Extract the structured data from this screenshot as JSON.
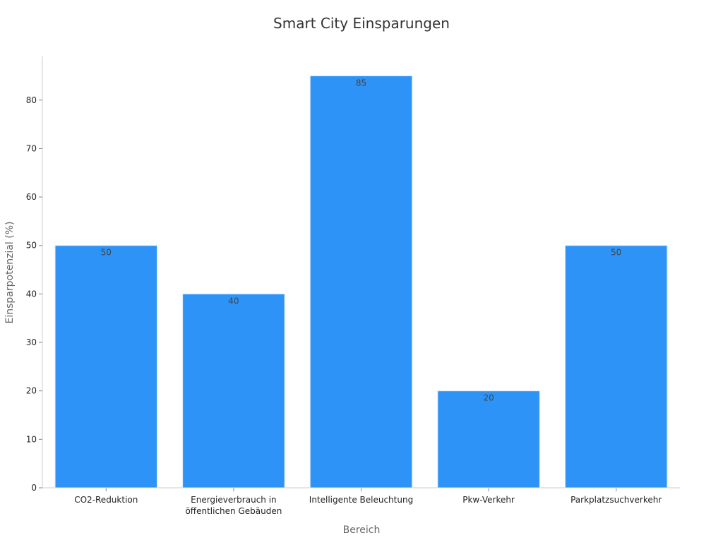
{
  "chart_data": {
    "type": "bar",
    "title": "Smart City Einsparungen",
    "xlabel": "Bereich",
    "ylabel": "Einsparpotenzial (%)",
    "categories": [
      [
        "CO2-Reduktion"
      ],
      [
        "Energieverbrauch in",
        "öffentlichen Gebäuden"
      ],
      [
        "Intelligente Beleuchtung"
      ],
      [
        "Pkw-Verkehr"
      ],
      [
        "Parkplatzsuchverkehr"
      ]
    ],
    "values": [
      50,
      40,
      85,
      20,
      50
    ],
    "ylim": [
      0,
      89
    ],
    "yticks": [
      0,
      10,
      20,
      30,
      40,
      50,
      60,
      70,
      80
    ],
    "grid": false,
    "legend": "none",
    "colors": {
      "bar": "#2e93f7",
      "bar_edge": "#d8e8f8",
      "axis": "#cccccc"
    }
  }
}
